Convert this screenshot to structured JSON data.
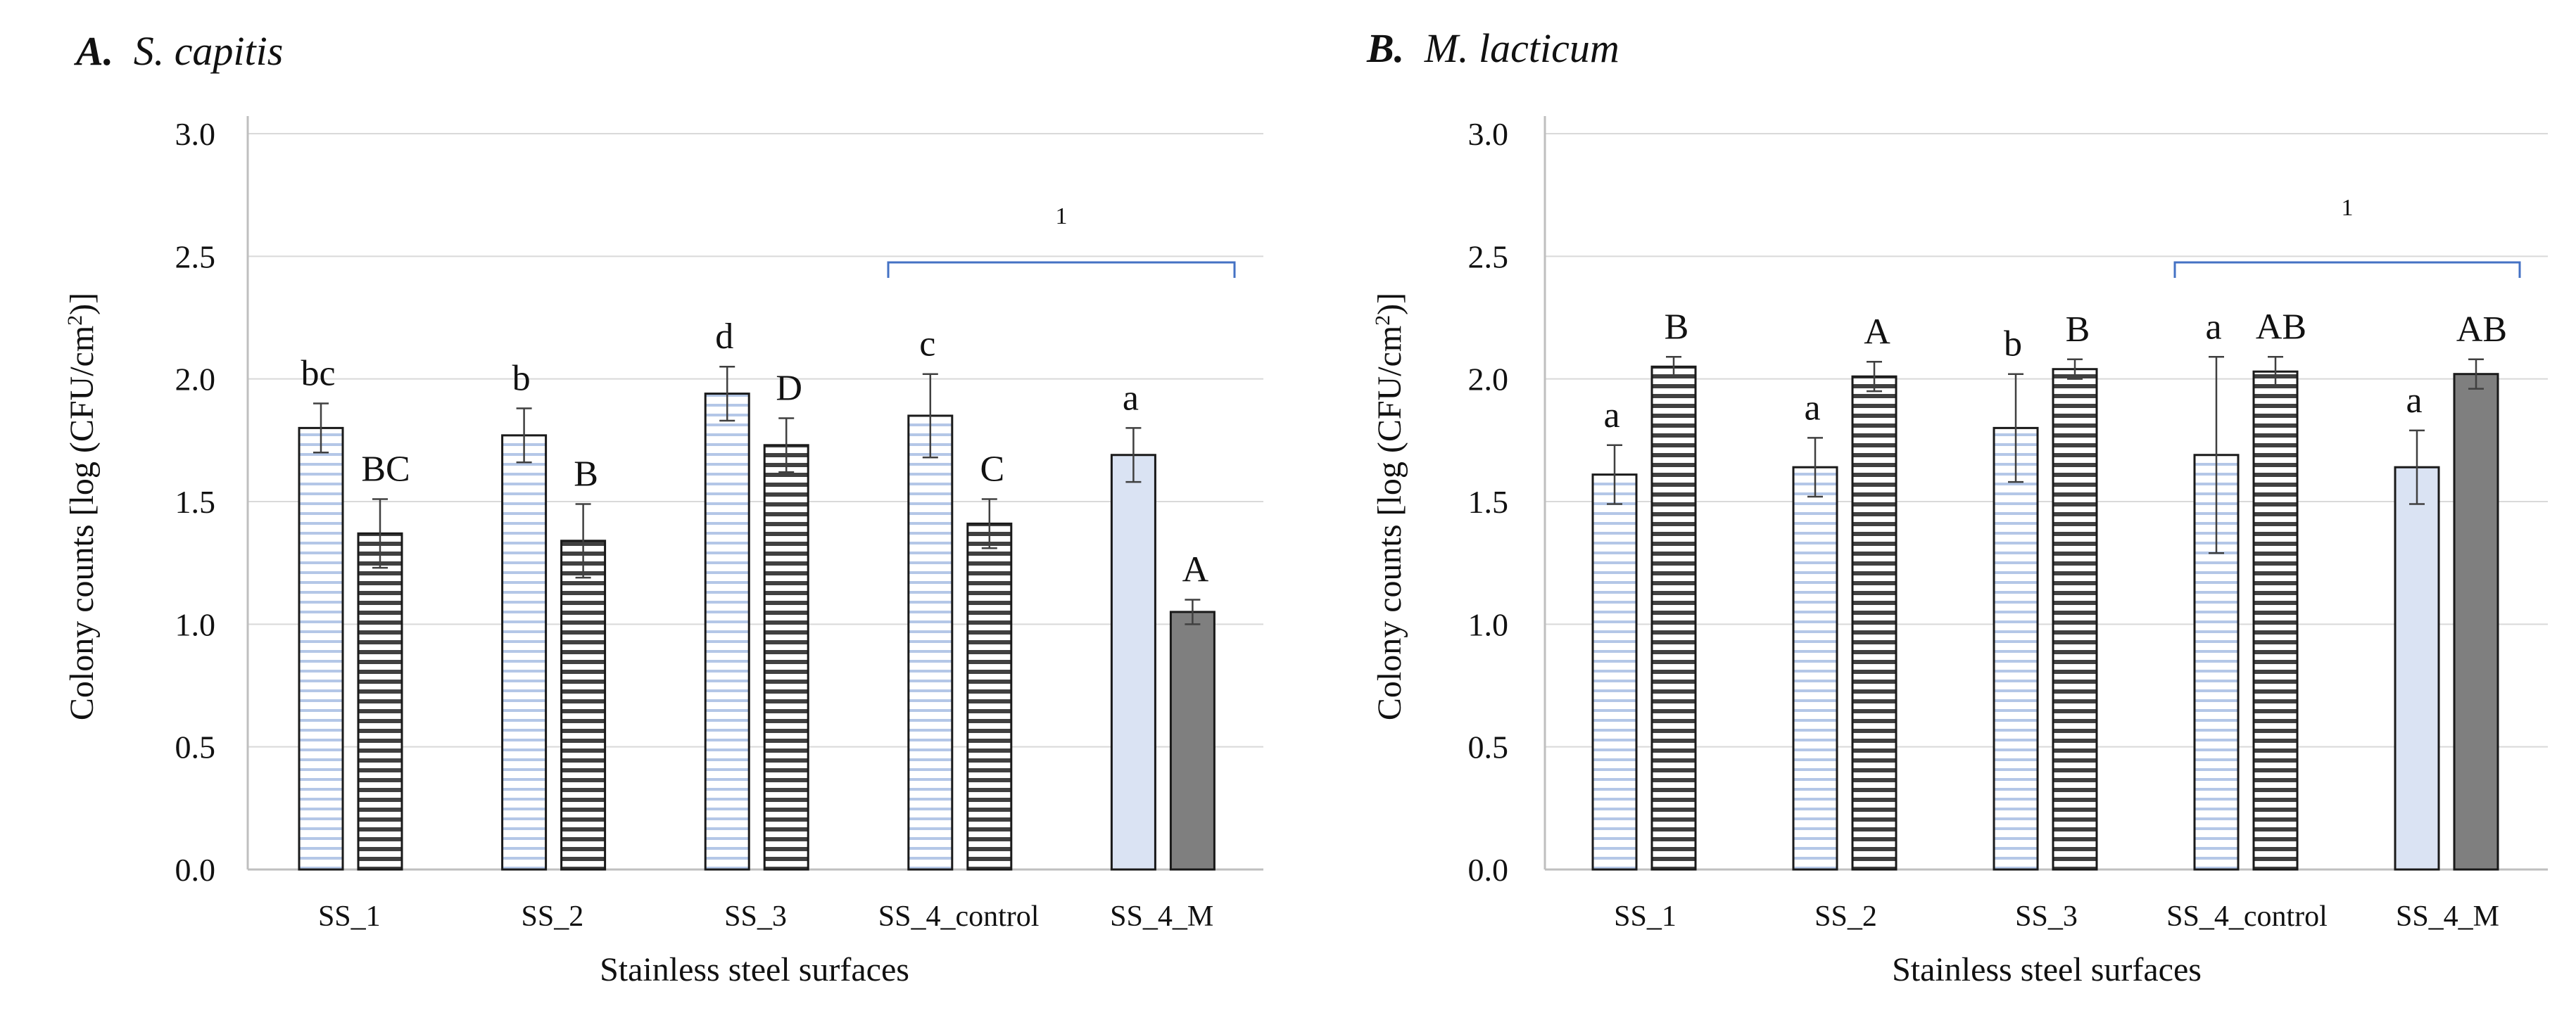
{
  "chart_data": [
    {
      "type": "bar",
      "panel_letter": "A.",
      "panel_species": "S. capitis",
      "xlabel": "Stainless steel surfaces",
      "ylabel_prefix": "Colony counts [log (CFU/cm",
      "ylabel_sup": "2",
      "ylabel_suffix": ")]",
      "ylim": [
        0,
        3.0
      ],
      "yticks": [
        "0.0",
        "0.5",
        "1.0",
        "1.5",
        "2.0",
        "2.5",
        "3.0"
      ],
      "grid": true,
      "categories": [
        "SS_1",
        "SS_2",
        "SS_3",
        "SS_4_control",
        "SS_4_M"
      ],
      "series": [
        {
          "name": "series-1",
          "values": [
            1.8,
            1.77,
            1.94,
            1.85,
            1.69
          ],
          "errors": [
            0.1,
            0.11,
            0.11,
            0.17,
            0.11
          ],
          "labels": [
            "bc",
            "b",
            "d",
            "c",
            "a"
          ]
        },
        {
          "name": "series-2",
          "values": [
            1.37,
            1.34,
            1.73,
            1.41,
            1.05
          ],
          "errors": [
            0.14,
            0.15,
            0.11,
            0.1,
            0.05
          ],
          "labels": [
            "BC",
            "B",
            "D",
            "C",
            "A"
          ]
        }
      ],
      "bracket": {
        "from": "SS_4_control",
        "to": "SS_4_M",
        "label": "1"
      }
    },
    {
      "type": "bar",
      "panel_letter": "B.",
      "panel_species": "M. lacticum",
      "xlabel": "Stainless steel surfaces",
      "ylabel_prefix": "Colony counts [log (CFU/cm",
      "ylabel_sup": "2",
      "ylabel_suffix": ")]",
      "ylim": [
        0,
        3.0
      ],
      "yticks": [
        "0.0",
        "0.5",
        "1.0",
        "1.5",
        "2.0",
        "2.5",
        "3.0"
      ],
      "grid": true,
      "categories": [
        "SS_1",
        "SS_2",
        "SS_3",
        "SS_4_control",
        "SS_4_M"
      ],
      "series": [
        {
          "name": "series-1",
          "values": [
            1.61,
            1.64,
            1.8,
            1.69,
            1.64
          ],
          "errors": [
            0.12,
            0.12,
            0.22,
            0.4,
            0.15
          ],
          "labels": [
            "a",
            "a",
            "b",
            "a",
            "a"
          ]
        },
        {
          "name": "series-2",
          "values": [
            2.05,
            2.01,
            2.04,
            2.03,
            2.02
          ],
          "errors": [
            0.04,
            0.06,
            0.04,
            0.06,
            0.06
          ],
          "labels": [
            "B",
            "A",
            "B",
            "AB",
            "AB"
          ]
        }
      ],
      "bracket": {
        "from": "SS_4_control",
        "to": "SS_4_M",
        "label": "1"
      }
    }
  ],
  "colors": {
    "grid": "#d9d9d9",
    "axis": "#bfbfbf",
    "bar_outline": "#1a1a1a",
    "stripe_light": "#b4c7e7",
    "fill_light_solid": "#dae3f3",
    "stripe_dark": "#404040",
    "fill_dark_solid": "#7f7f7f",
    "bracket": "#4472c4",
    "error_bar": "#404040"
  }
}
